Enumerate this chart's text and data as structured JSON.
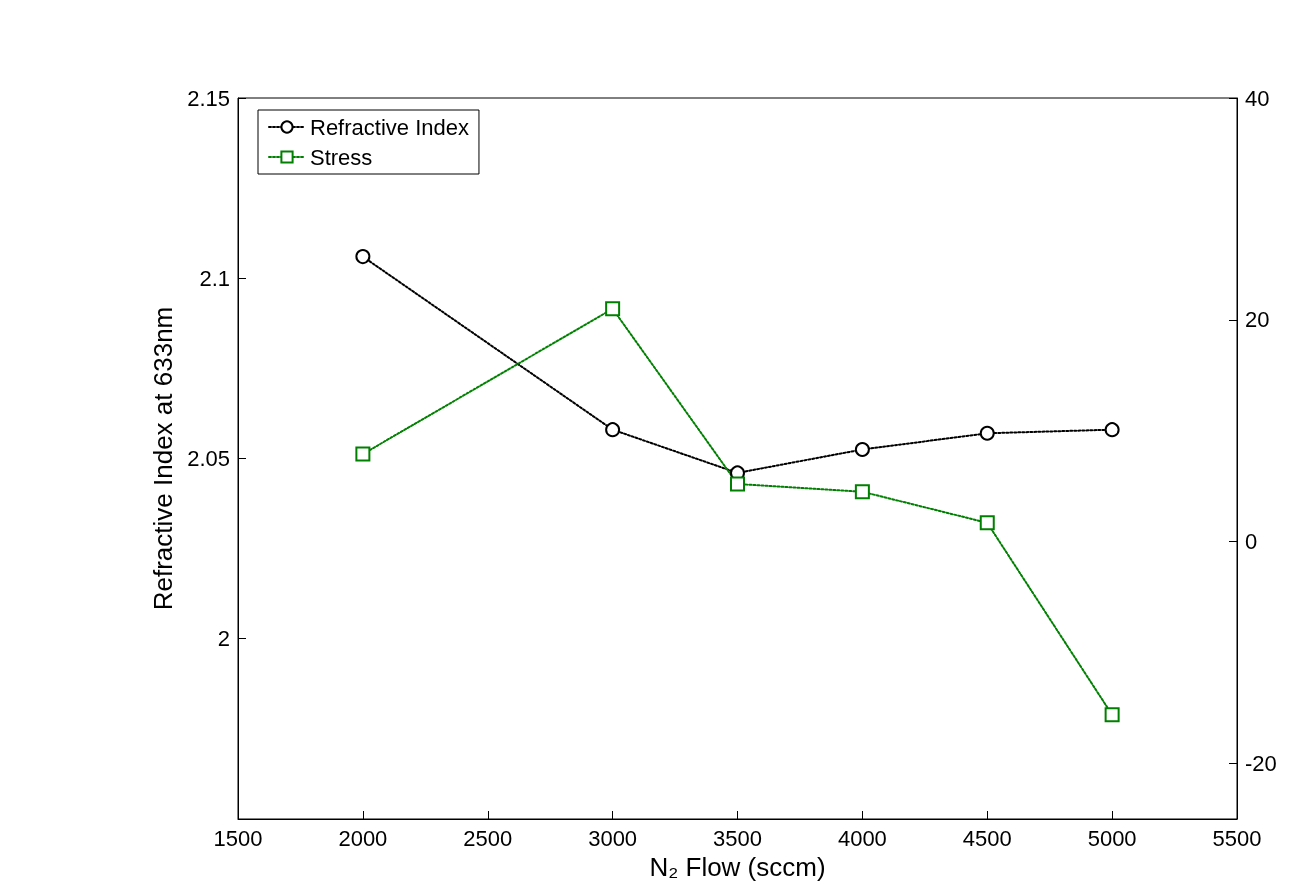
{
  "chart_data": {
    "type": "line",
    "xlabel": "N₂ Flow (sccm)",
    "ylabel": "Refractive Index at 633nm",
    "x": [
      2000,
      3000,
      3500,
      4000,
      4500,
      5000
    ],
    "series": [
      {
        "name": "Refractive Index",
        "color": "#000000",
        "marker": "circle",
        "values": [
          2.106,
          2.058,
          2.046,
          2.0525,
          2.057,
          2.058
        ]
      },
      {
        "name": "Stress",
        "color": "#008000",
        "marker": "square",
        "axis": "y2",
        "values": [
          7.9,
          21.0,
          5.2,
          4.5,
          1.7,
          -15.6
        ]
      }
    ],
    "xlim": [
      1500,
      5500
    ],
    "xticks": [
      1500,
      2000,
      2500,
      3000,
      3500,
      4000,
      4500,
      5000,
      5500
    ],
    "ylim": [
      1.95,
      2.15
    ],
    "yticks": [
      2,
      2.05,
      2.1,
      2.15
    ],
    "y2lim": [
      -25,
      40
    ],
    "y2ticks": [
      -20,
      0,
      20,
      40
    ],
    "grid": false,
    "legend": "top left",
    "line_style": "dotted"
  }
}
